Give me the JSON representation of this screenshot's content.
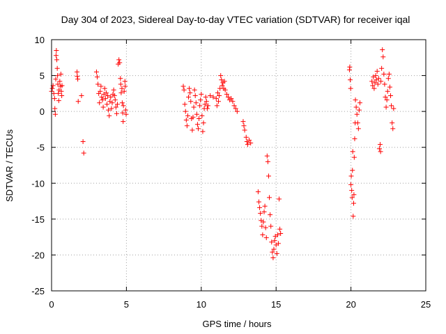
{
  "chart_data": {
    "type": "scatter",
    "title": "Day 304 of 2023, Sidereal Day-to-day VTEC variation (SDTVAR) for receiver iqal",
    "xlabel": "GPS time / hours",
    "ylabel": "SDTVAR / TECUs",
    "xlim": [
      0,
      25
    ],
    "ylim": [
      -25,
      10
    ],
    "xticks": [
      0,
      5,
      10,
      15,
      20,
      25
    ],
    "yticks": [
      10,
      5,
      0,
      -5,
      -10,
      -15,
      -20,
      -25
    ],
    "xtick_labels": [
      "0",
      "5",
      "10",
      "15",
      "20",
      "25"
    ],
    "ytick_labels": [
      "10",
      "5",
      "0",
      "-5",
      "-10",
      "-15",
      "-20",
      "-25"
    ],
    "grid": true,
    "marker": "+",
    "color": "#ff0000",
    "series": [
      {
        "name": "SDTVAR",
        "points": [
          [
            0.0,
            2.8
          ],
          [
            0.05,
            3.2
          ],
          [
            0.1,
            3.6
          ],
          [
            0.15,
            2.5
          ],
          [
            0.2,
            1.8
          ],
          [
            0.22,
            0.4
          ],
          [
            0.25,
            -0.4
          ],
          [
            0.28,
            4.5
          ],
          [
            0.3,
            7.8
          ],
          [
            0.32,
            8.5
          ],
          [
            0.35,
            7.2
          ],
          [
            0.38,
            6.0
          ],
          [
            0.4,
            5.0
          ],
          [
            0.42,
            3.8
          ],
          [
            0.45,
            2.5
          ],
          [
            0.48,
            1.5
          ],
          [
            0.5,
            3.0
          ],
          [
            0.55,
            4.2
          ],
          [
            0.6,
            3.5
          ],
          [
            0.62,
            5.2
          ],
          [
            0.65,
            2.8
          ],
          [
            0.68,
            2.2
          ],
          [
            0.7,
            3.6
          ],
          [
            1.7,
            5.5
          ],
          [
            1.72,
            4.9
          ],
          [
            1.75,
            4.5
          ],
          [
            1.78,
            1.4
          ],
          [
            2.0,
            2.2
          ],
          [
            2.1,
            -4.2
          ],
          [
            2.15,
            -5.8
          ],
          [
            3.0,
            5.5
          ],
          [
            3.05,
            4.8
          ],
          [
            3.1,
            3.8
          ],
          [
            3.15,
            2.5
          ],
          [
            3.2,
            1.2
          ],
          [
            3.25,
            2.8
          ],
          [
            3.3,
            3.5
          ],
          [
            3.35,
            2.0
          ],
          [
            3.4,
            1.6
          ],
          [
            3.45,
            0.6
          ],
          [
            3.5,
            2.4
          ],
          [
            3.55,
            3.2
          ],
          [
            3.6,
            1.8
          ],
          [
            3.65,
            2.6
          ],
          [
            3.7,
            1.0
          ],
          [
            3.75,
            2.2
          ],
          [
            3.8,
            0.2
          ],
          [
            3.85,
            -0.6
          ],
          [
            3.9,
            1.4
          ],
          [
            3.95,
            2.0
          ],
          [
            4.0,
            0.4
          ],
          [
            4.05,
            1.2
          ],
          [
            4.1,
            2.4
          ],
          [
            4.15,
            3.0
          ],
          [
            4.2,
            2.2
          ],
          [
            4.25,
            1.6
          ],
          [
            4.3,
            0.6
          ],
          [
            4.35,
            -0.3
          ],
          [
            4.4,
            1.0
          ],
          [
            4.45,
            6.6
          ],
          [
            4.5,
            7.2
          ],
          [
            4.55,
            6.8
          ],
          [
            4.6,
            4.6
          ],
          [
            4.62,
            3.8
          ],
          [
            4.65,
            2.6
          ],
          [
            4.7,
            3.2
          ],
          [
            4.72,
            1.2
          ],
          [
            4.75,
            -0.2
          ],
          [
            4.78,
            -1.4
          ],
          [
            4.8,
            0.8
          ],
          [
            4.85,
            2.8
          ],
          [
            4.9,
            4.2
          ],
          [
            4.92,
            3.5
          ],
          [
            4.95,
            0.2
          ],
          [
            4.98,
            -0.4
          ],
          [
            8.8,
            3.5
          ],
          [
            8.85,
            3.0
          ],
          [
            8.9,
            1.0
          ],
          [
            8.95,
            0.0
          ],
          [
            9.0,
            -1.2
          ],
          [
            9.05,
            -2.0
          ],
          [
            9.1,
            -0.6
          ],
          [
            9.15,
            2.0
          ],
          [
            9.2,
            3.2
          ],
          [
            9.25,
            2.6
          ],
          [
            9.3,
            1.4
          ],
          [
            9.35,
            -1.0
          ],
          [
            9.4,
            -2.6
          ],
          [
            9.45,
            -0.8
          ],
          [
            9.5,
            0.6
          ],
          [
            9.55,
            3.0
          ],
          [
            9.6,
            2.2
          ],
          [
            9.65,
            1.2
          ],
          [
            9.7,
            -0.4
          ],
          [
            9.75,
            -1.8
          ],
          [
            9.8,
            -2.4
          ],
          [
            9.85,
            -1.0
          ],
          [
            9.9,
            0.8
          ],
          [
            9.95,
            1.6
          ],
          [
            10.0,
            2.4
          ],
          [
            10.05,
            -0.6
          ],
          [
            10.1,
            -2.8
          ],
          [
            10.15,
            -1.6
          ],
          [
            10.2,
            0.4
          ],
          [
            10.25,
            1.0
          ],
          [
            10.3,
            2.0
          ],
          [
            10.35,
            1.4
          ],
          [
            10.4,
            0.4
          ],
          [
            10.45,
            0.8
          ],
          [
            10.6,
            2.2
          ],
          [
            10.8,
            2.0
          ],
          [
            11.0,
            1.8
          ],
          [
            11.05,
            0.8
          ],
          [
            11.1,
            2.6
          ],
          [
            11.15,
            1.4
          ],
          [
            11.2,
            2.2
          ],
          [
            11.25,
            3.2
          ],
          [
            11.3,
            5.0
          ],
          [
            11.35,
            4.4
          ],
          [
            11.4,
            3.6
          ],
          [
            11.45,
            4.0
          ],
          [
            11.5,
            3.2
          ],
          [
            11.55,
            4.2
          ],
          [
            11.6,
            3.0
          ],
          [
            11.7,
            2.4
          ],
          [
            11.8,
            2.0
          ],
          [
            11.9,
            1.6
          ],
          [
            12.0,
            1.8
          ],
          [
            12.1,
            1.4
          ],
          [
            12.2,
            0.8
          ],
          [
            12.3,
            0.4
          ],
          [
            12.4,
            0.0
          ],
          [
            12.8,
            -1.4
          ],
          [
            12.85,
            -2.0
          ],
          [
            12.9,
            -2.6
          ],
          [
            13.0,
            -3.6
          ],
          [
            13.05,
            -4.2
          ],
          [
            13.1,
            -4.6
          ],
          [
            13.2,
            -4.0
          ],
          [
            13.3,
            -4.4
          ],
          [
            13.8,
            -11.2
          ],
          [
            13.85,
            -12.6
          ],
          [
            13.9,
            -13.4
          ],
          [
            13.95,
            -14.2
          ],
          [
            14.0,
            -15.2
          ],
          [
            14.05,
            -16.0
          ],
          [
            14.1,
            -17.2
          ],
          [
            14.15,
            -15.4
          ],
          [
            14.2,
            -14.0
          ],
          [
            14.25,
            -13.2
          ],
          [
            14.3,
            -16.2
          ],
          [
            14.35,
            -17.6
          ],
          [
            14.4,
            -6.2
          ],
          [
            14.45,
            -7.0
          ],
          [
            14.5,
            -9.0
          ],
          [
            14.55,
            -12.0
          ],
          [
            14.6,
            -14.4
          ],
          [
            14.65,
            -16.0
          ],
          [
            14.7,
            -18.2
          ],
          [
            14.75,
            -19.6
          ],
          [
            14.8,
            -20.4
          ],
          [
            14.85,
            -19.2
          ],
          [
            14.9,
            -18.0
          ],
          [
            14.95,
            -17.4
          ],
          [
            15.0,
            -18.6
          ],
          [
            15.05,
            -19.8
          ],
          [
            15.1,
            -17.2
          ],
          [
            15.15,
            -18.4
          ],
          [
            15.2,
            -12.2
          ],
          [
            15.25,
            -16.4
          ],
          [
            15.3,
            -17.0
          ],
          [
            19.9,
            5.8
          ],
          [
            19.92,
            6.2
          ],
          [
            19.95,
            4.4
          ],
          [
            19.98,
            3.2
          ],
          [
            20.0,
            -10.2
          ],
          [
            20.02,
            -9.0
          ],
          [
            20.05,
            -11.0
          ],
          [
            20.08,
            -12.0
          ],
          [
            20.1,
            -8.2
          ],
          [
            20.12,
            -5.6
          ],
          [
            20.15,
            -14.6
          ],
          [
            20.18,
            -12.8
          ],
          [
            20.2,
            -11.6
          ],
          [
            20.22,
            -6.4
          ],
          [
            20.25,
            -3.8
          ],
          [
            20.28,
            -1.6
          ],
          [
            20.3,
            1.6
          ],
          [
            20.35,
            0.6
          ],
          [
            20.4,
            -0.4
          ],
          [
            20.45,
            -1.6
          ],
          [
            20.5,
            -2.4
          ],
          [
            20.55,
            0.2
          ],
          [
            20.6,
            1.2
          ],
          [
            21.4,
            4.2
          ],
          [
            21.45,
            3.6
          ],
          [
            21.5,
            4.8
          ],
          [
            21.55,
            3.2
          ],
          [
            21.6,
            4.0
          ],
          [
            21.65,
            5.0
          ],
          [
            21.7,
            4.4
          ],
          [
            21.75,
            5.6
          ],
          [
            21.8,
            3.8
          ],
          [
            21.85,
            4.6
          ],
          [
            21.9,
            -5.2
          ],
          [
            21.95,
            -4.6
          ],
          [
            21.98,
            -5.6
          ],
          [
            22.0,
            4.2
          ],
          [
            22.05,
            6.0
          ],
          [
            22.1,
            8.6
          ],
          [
            22.15,
            7.6
          ],
          [
            22.2,
            5.2
          ],
          [
            22.25,
            3.8
          ],
          [
            22.3,
            2.0
          ],
          [
            22.35,
            0.6
          ],
          [
            22.4,
            1.6
          ],
          [
            22.45,
            2.8
          ],
          [
            22.5,
            4.6
          ],
          [
            22.55,
            5.2
          ],
          [
            22.6,
            3.4
          ],
          [
            22.65,
            2.2
          ],
          [
            22.7,
            0.8
          ],
          [
            22.75,
            -1.6
          ],
          [
            22.8,
            -2.4
          ],
          [
            22.85,
            0.4
          ]
        ]
      }
    ]
  }
}
